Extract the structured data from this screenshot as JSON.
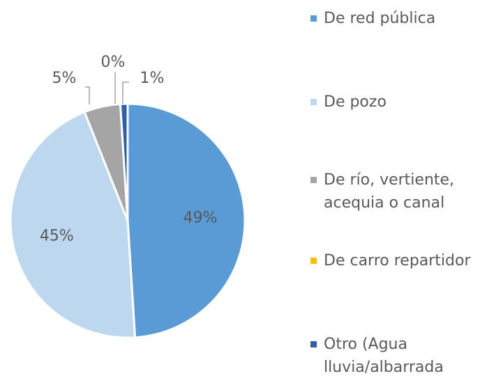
{
  "chart_data": {
    "type": "pie",
    "categories": [
      "De red pública",
      "De pozo",
      "De río, vertiente, acequia o canal",
      "De carro repartidor",
      "Otro (Agua lluvia/albarrada"
    ],
    "values": [
      49,
      45,
      5,
      0,
      1
    ],
    "value_labels": [
      "49%",
      "45%",
      "5%",
      "0%",
      "1%"
    ],
    "colors": [
      "#5b9bd5",
      "#bdd7ee",
      "#a5a5a5",
      "#ffc000",
      "#2f5fa8"
    ],
    "legend": "right"
  }
}
